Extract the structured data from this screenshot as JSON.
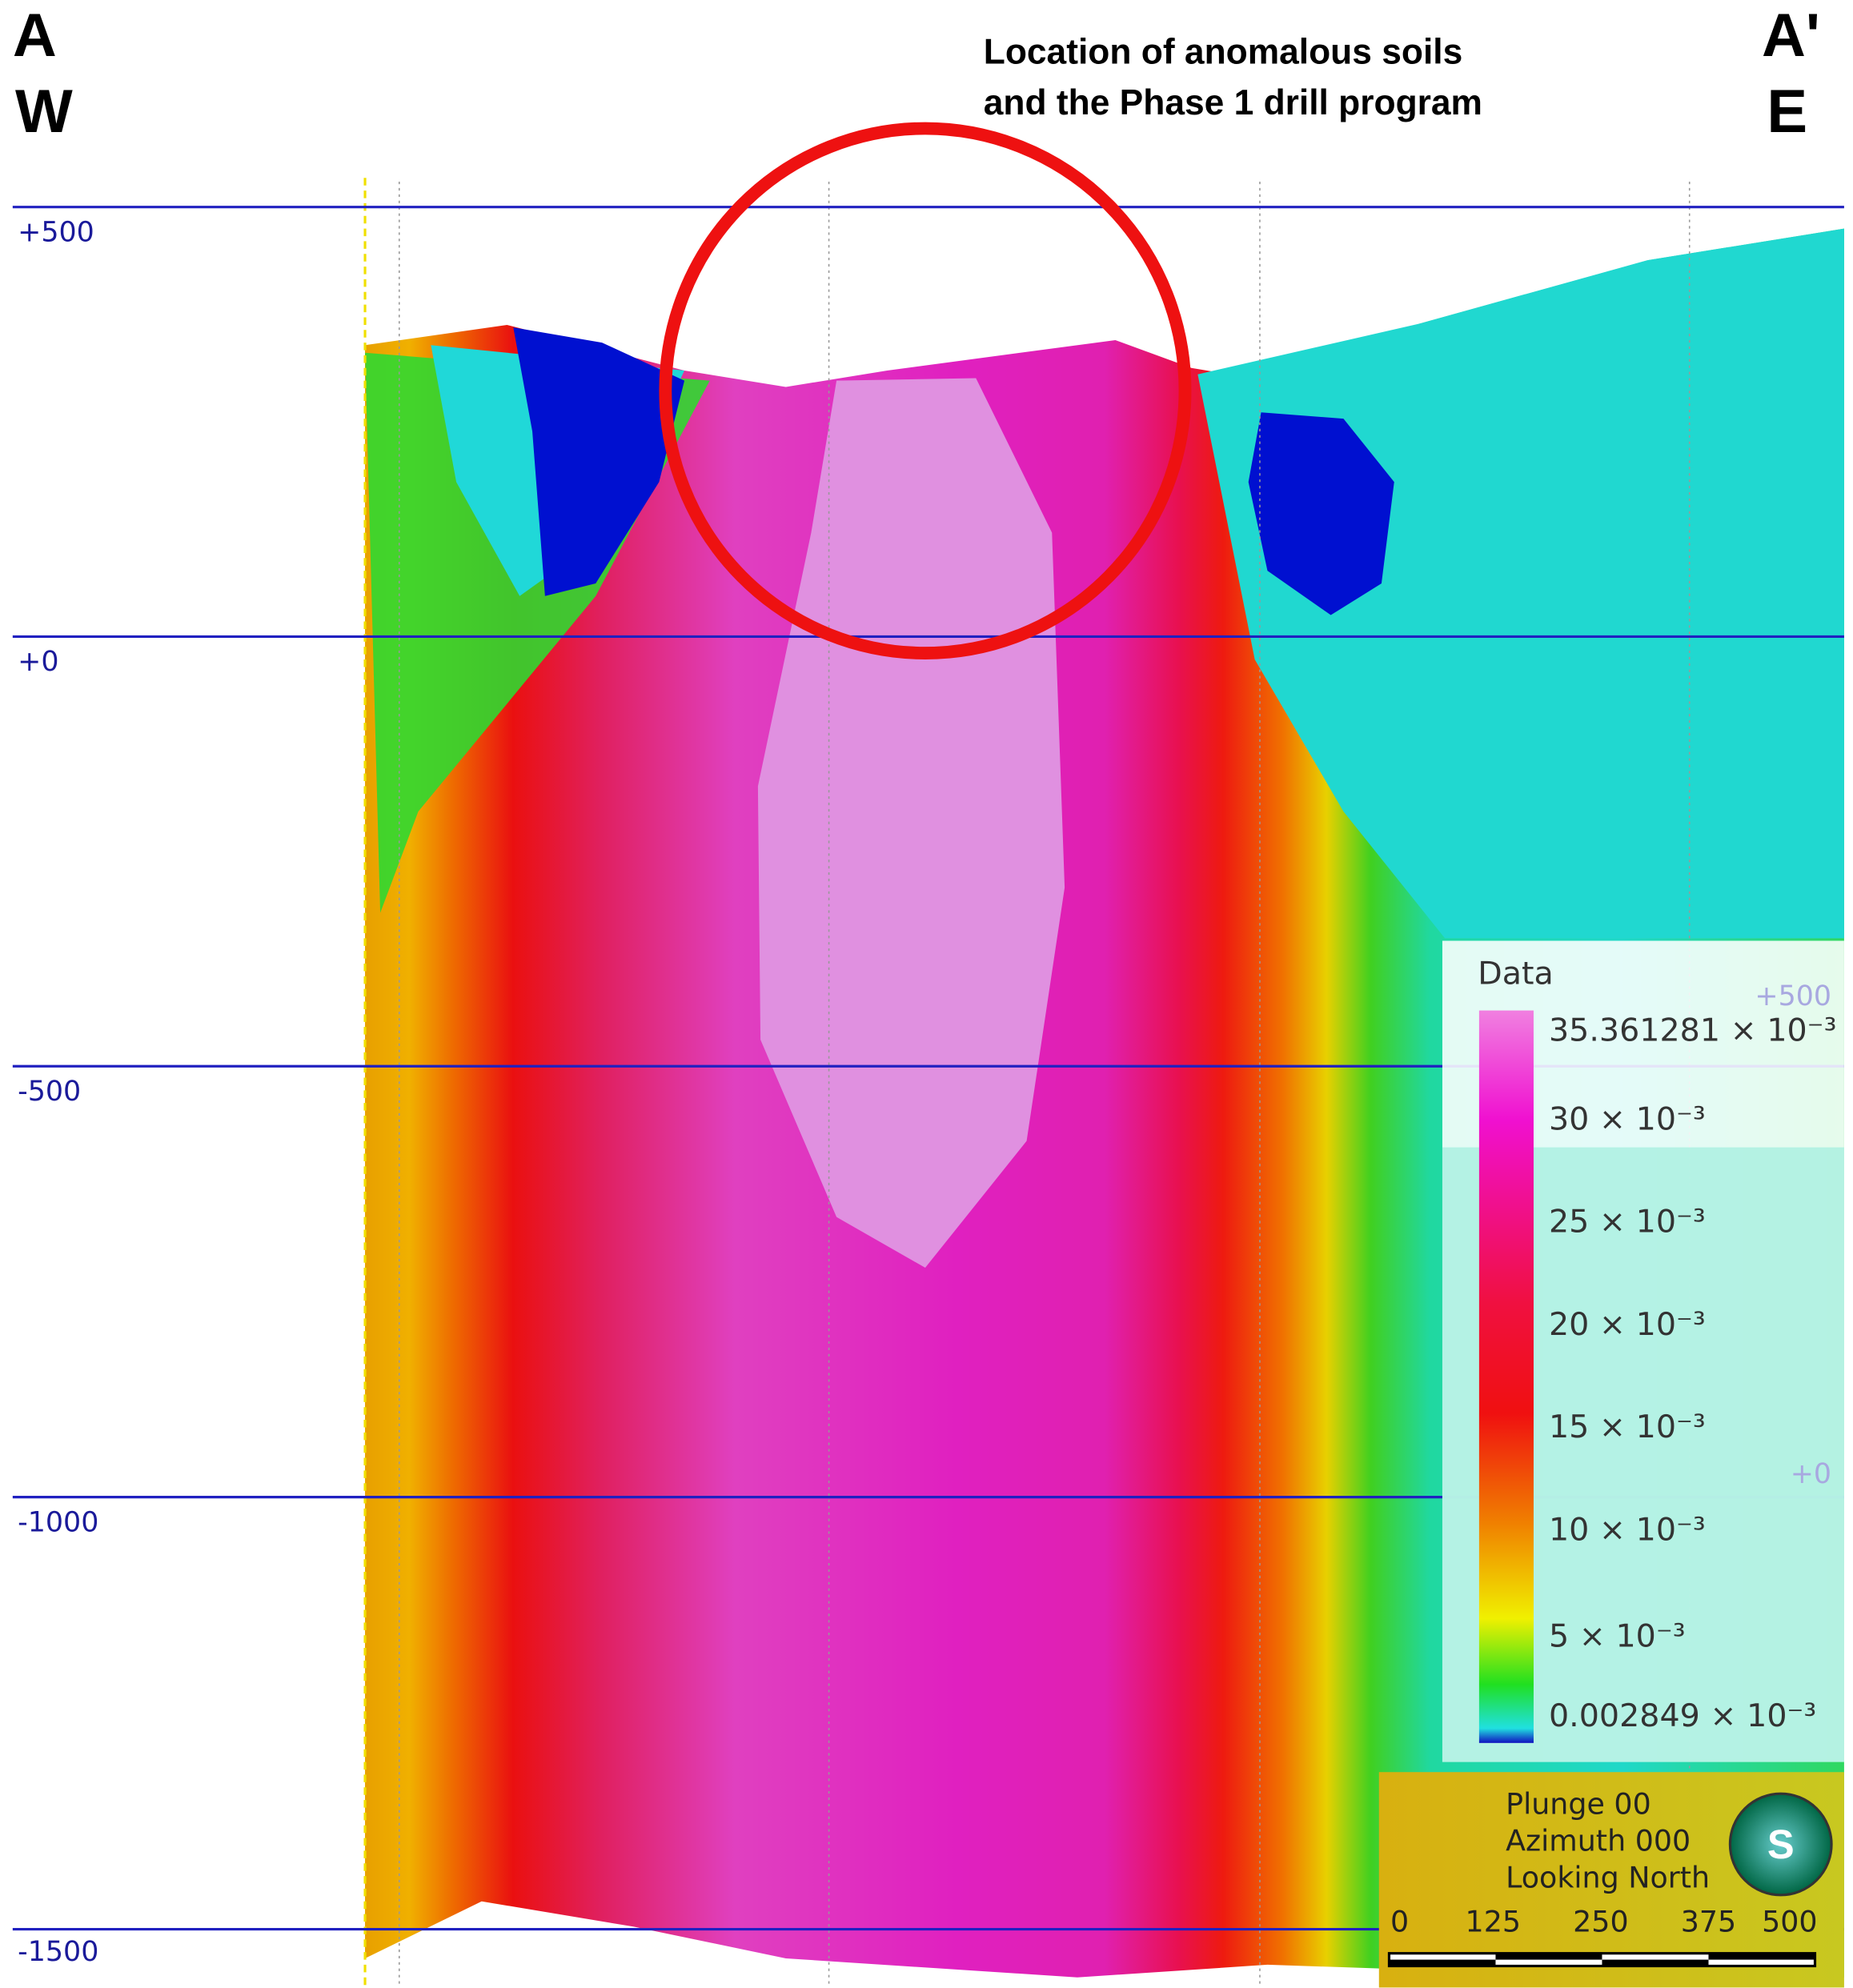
{
  "header": {
    "left_letter": "A",
    "left_direction": "W",
    "right_letter": "A'",
    "right_direction": "E",
    "annotation": [
      "Location of anomalous soils",
      "and the Phase 1 drill program"
    ]
  },
  "elevation_labels": [
    "+500",
    "+0",
    "-500",
    "-1000",
    "-1500"
  ],
  "legend": {
    "title": "Data",
    "labels": [
      "35.361281 × 10⁻³",
      "30 × 10⁻³",
      "25 × 10⁻³",
      "20 × 10⁻³",
      "15 × 10⁻³",
      "10 × 10⁻³",
      "5 × 10⁻³",
      "0.002849 × 10⁻³"
    ],
    "faint_labels": [
      "+500",
      "+0"
    ]
  },
  "view_info": {
    "lines": [
      "Plunge 00",
      "Azimuth 000",
      "Looking North"
    ],
    "logo": "S",
    "scale": [
      "0",
      "125",
      "250",
      "375",
      "500"
    ]
  }
}
